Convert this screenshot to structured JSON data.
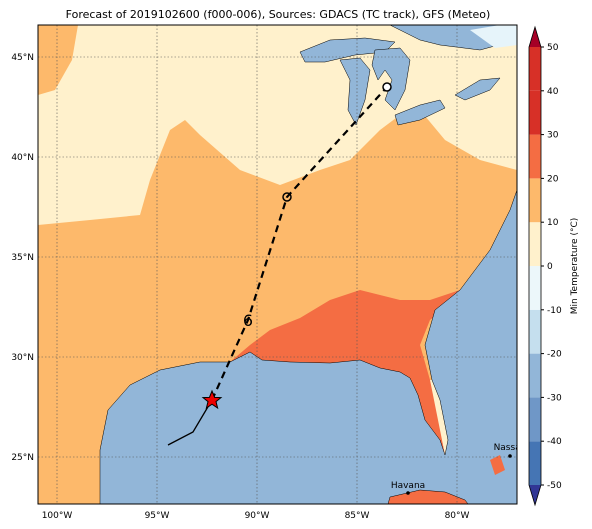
{
  "title": "Forecast of 2019102600 (f000-006), Sources: GDACS (TC track), GFS (Meteo)",
  "map": {
    "lon_labels": [
      "100°W",
      "95°W",
      "90°W",
      "85°W",
      "80°W"
    ],
    "lat_labels": [
      "45°N",
      "40°N",
      "35°N",
      "30°N",
      "25°N"
    ],
    "places": [
      "Nassau",
      "Havana"
    ]
  },
  "colorbar": {
    "label": "Min Temperature (°C)",
    "lim": [
      -50,
      50
    ],
    "ticks": [
      -50,
      -40,
      -30,
      -20,
      -10,
      0,
      10,
      20,
      30,
      40,
      50
    ],
    "colors": [
      "#313695",
      "#4575b4",
      "#6f97c7",
      "#92b6d8",
      "#c5dfee",
      "#ecf7fa",
      "#fff1cc",
      "#fdb96b",
      "#f46d43",
      "#d73027",
      "#a50026"
    ]
  }
}
